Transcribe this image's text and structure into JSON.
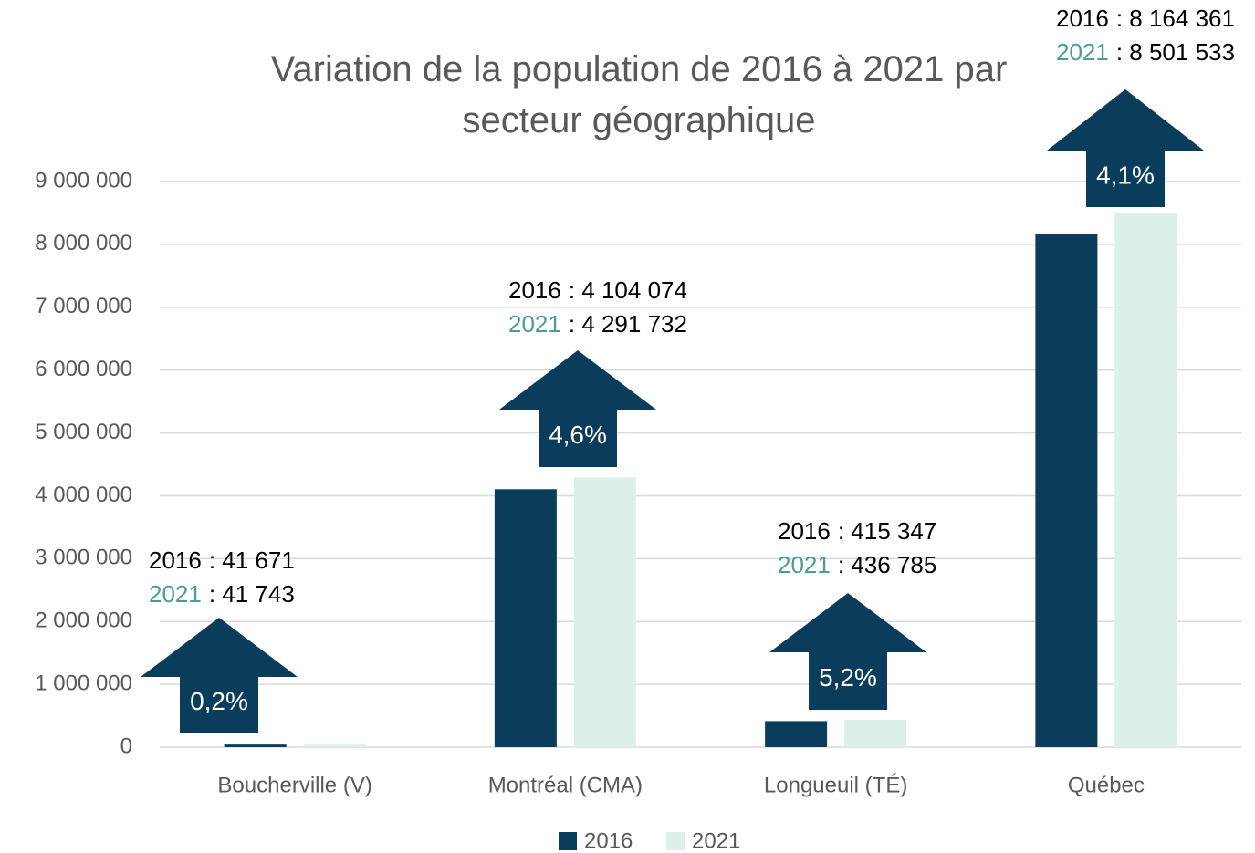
{
  "chart_data": {
    "type": "bar",
    "title": "Variation de la population de 2016 à 2021 par secteur géographique",
    "categories": [
      "Boucherville (V)",
      "Montréal (CMA)",
      "Longueuil (TÉ)",
      "Québec"
    ],
    "series": [
      {
        "name": "2016",
        "color": "#0a3d5c",
        "values": [
          41671,
          4104074,
          415347,
          8164361
        ],
        "value_labels": [
          ": 41 671",
          ": 4 104 074",
          ": 415 347",
          ": 8 164 361"
        ],
        "name_color": "#000000"
      },
      {
        "name": "2021",
        "color": "#dcf0eb",
        "values": [
          41743,
          4291732,
          436785,
          8501533
        ],
        "value_labels": [
          ": 41 743",
          ": 4 291 732",
          ": 436 785",
          ": 8 501 533"
        ],
        "name_color": "#4a9d95"
      }
    ],
    "annotations": [
      "0,2%",
      "4,6%",
      "5,2%",
      "4,1%"
    ],
    "arrow_color": "#0a3d5c",
    "ylim": [
      0,
      9000000
    ],
    "yticks": [
      0,
      {
        "value": 1000000,
        "label": "1 000 000"
      },
      {
        "value": 2000000,
        "label": "2 000 000"
      },
      {
        "value": 3000000,
        "label": "3 000 000"
      },
      {
        "value": 4000000,
        "label": "4 000 000"
      },
      {
        "value": 5000000,
        "label": "5 000 000"
      },
      {
        "value": 6000000,
        "label": "6 000 000"
      },
      {
        "value": 7000000,
        "label": "7 000 000"
      },
      {
        "value": 8000000,
        "label": "8 000 000"
      },
      {
        "value": 9000000,
        "label": "9 000 000"
      }
    ],
    "grid": true,
    "legend": "bottom"
  }
}
